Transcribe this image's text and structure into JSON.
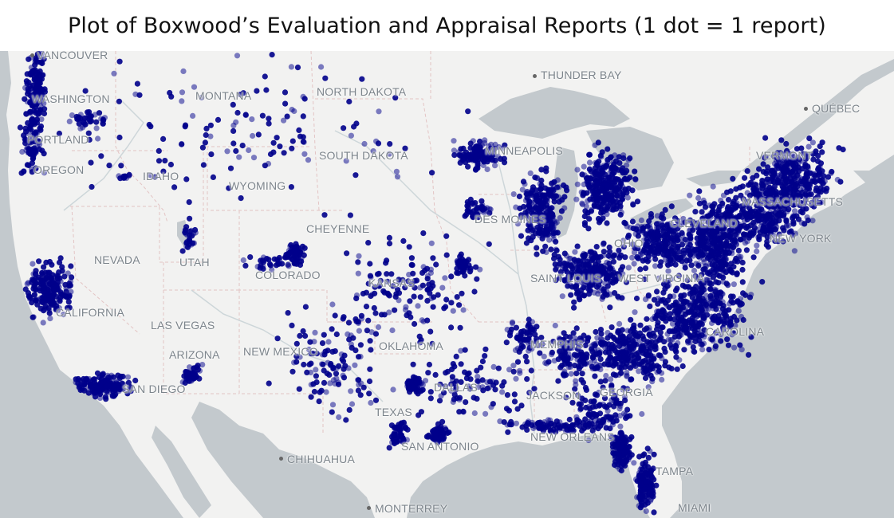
{
  "title": "Plot of Boxwood’s Evaluation and Appraisal Reports (1 dot = 1 report)",
  "legend_note": "1 dot = 1 report",
  "colors": {
    "dot": "#00008b",
    "land": "#f2f2f1",
    "water": "#c3c9cd",
    "border": "#e3c4c4",
    "label": "#7c848b"
  },
  "map": {
    "labels": {
      "vancouver": "VANCOUVER",
      "washington": "WASHINGTON",
      "portland": "PORTLAND",
      "oregon": "OREGON",
      "idaho": "IDAHO",
      "montana": "MONTANA",
      "wyoming": "WYOMING",
      "north_dakota": "NORTH DAKOTA",
      "south_dakota": "SOUTH DAKOTA",
      "minneapolis": "MINNEAPOLIS",
      "thunder_bay": "THUNDER BAY",
      "quebec": "QUÉBEC",
      "vermont": "VERMONT",
      "massachusetts": "MASSACHUSETTS",
      "new_york": "NEW YORK",
      "nevada": "NEVADA",
      "utah": "UTAH",
      "cheyenne": "CHEYENNE",
      "colorado": "COLORADO",
      "kansas": "KANSAS",
      "des_moines": "DES MOINES",
      "saint_louis": "SAINT LOUIS",
      "west_virginia": "WEST VIRGINIA",
      "ohio": "OHIO",
      "cleveland": "CLEVELAND",
      "california": "CALIFORNIA",
      "las_vegas": "LAS VEGAS",
      "arizona": "ARIZONA",
      "new_mexico": "NEW MEXICO",
      "oklahoma": "OKLAHOMA",
      "memphis": "MEMPHIS",
      "san_diego": "SAN DIEGO",
      "dallas": "DALLAS",
      "jackson": "JACKSON",
      "georgia": "GEORGIA",
      "texas": "TEXAS",
      "san_antonio": "SAN ANTONIO",
      "new_orleans": "NEW ORLEANS",
      "chihuahua": "CHIHUAHUA",
      "tampa": "TAMPA",
      "miami": "MIAMI",
      "monterrey": "MONTERREY",
      "carolina": "CAROLINA"
    }
  }
}
